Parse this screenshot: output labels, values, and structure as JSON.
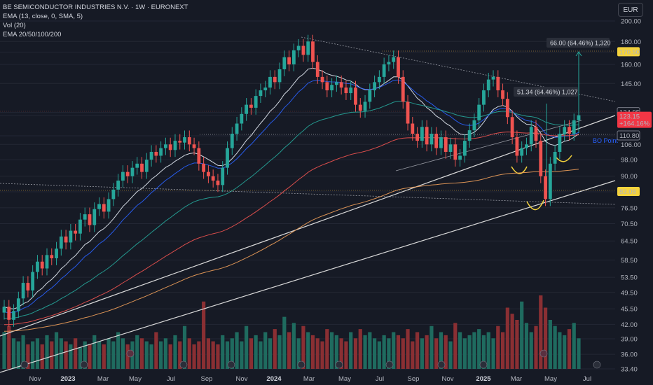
{
  "legend": {
    "title": "BE SEMICONDUCTOR INDUSTRIES N.V. · 1W · EURONEXT",
    "ema": "EMA (13, close, 0, SMA, 5)",
    "vol": "Vol (20)",
    "ema_multi": "EMA 20/50/100/200"
  },
  "currency": "EUR",
  "colors": {
    "up": "#26a69a",
    "down": "#ef5350",
    "bg": "#161a25",
    "ema13": "#e6ecf5",
    "ema20": "#2962ff",
    "ema50": "#26a69a",
    "ema100": "#ef5350",
    "ema200": "#f0a05a"
  },
  "chart_data": {
    "type": "candlestick",
    "y_scale": "log",
    "ylim": [
      33.4,
      200
    ],
    "y_ticks": [
      "200.00",
      "180.00",
      "170.50",
      "160.00",
      "145.00",
      "124.95",
      "123.15",
      "110.80",
      "106.00",
      "98.00",
      "90.00",
      "83.08",
      "76.50",
      "70.50",
      "64.50",
      "58.50",
      "53.50",
      "49.50",
      "45.50",
      "42.00",
      "39.00",
      "36.00",
      "33.40"
    ],
    "x_ticks": [
      {
        "label": "Nov",
        "bold": false
      },
      {
        "label": "2023",
        "bold": true
      },
      {
        "label": "Mar",
        "bold": false
      },
      {
        "label": "May",
        "bold": false
      },
      {
        "label": "Jul",
        "bold": false
      },
      {
        "label": "Sep",
        "bold": false
      },
      {
        "label": "Nov",
        "bold": false
      },
      {
        "label": "2024",
        "bold": true
      },
      {
        "label": "Mar",
        "bold": false
      },
      {
        "label": "May",
        "bold": false
      },
      {
        "label": "Jul",
        "bold": false
      },
      {
        "label": "Sep",
        "bold": false
      },
      {
        "label": "Nov",
        "bold": false
      },
      {
        "label": "2025",
        "bold": true
      },
      {
        "label": "Mar",
        "bold": false
      },
      {
        "label": "May",
        "bold": false
      },
      {
        "label": "Jul",
        "bold": false
      }
    ],
    "price_labels": [
      {
        "value": 170.5,
        "text": "170.50",
        "style": "yellow"
      },
      {
        "value": 124.95,
        "text": "124.95",
        "style": "outline"
      },
      {
        "value": 123.15,
        "text": "123.15",
        "sub": "+164.16%",
        "style": "red"
      },
      {
        "value": 110.8,
        "text": "110.80",
        "style": "outline"
      },
      {
        "value": 83.08,
        "text": "83.08",
        "style": "yellow"
      }
    ],
    "annotations": [
      {
        "text": "66.00 (64.46%) 1,320"
      },
      {
        "text": "51.34 (64.46%) 1,027"
      },
      {
        "text": "BO Point"
      }
    ],
    "closes": [
      46,
      43,
      45,
      48,
      52,
      50,
      55,
      58,
      56,
      60,
      59,
      62,
      66,
      64,
      68,
      67,
      72,
      74,
      70,
      76,
      78,
      75,
      80,
      84,
      88,
      92,
      90,
      94,
      96,
      92,
      98,
      102,
      100,
      104,
      106,
      103,
      108,
      107,
      110,
      106,
      104,
      96,
      92,
      90,
      88,
      86,
      94,
      104,
      112,
      118,
      124,
      130,
      128,
      136,
      140,
      142,
      150,
      146,
      156,
      166,
      160,
      172,
      176,
      168,
      180,
      162,
      150,
      146,
      140,
      144,
      146,
      142,
      138,
      142,
      130,
      126,
      132,
      140,
      146,
      150,
      160,
      162,
      166,
      150,
      132,
      118,
      112,
      108,
      116,
      106,
      112,
      104,
      110,
      102,
      106,
      98,
      100,
      108,
      114,
      120,
      130,
      140,
      148,
      150,
      140,
      134,
      122,
      110,
      100,
      104,
      106,
      116,
      108,
      90,
      80,
      96,
      102,
      112,
      116,
      112,
      120,
      123.15
    ],
    "volume": [
      12,
      14,
      10,
      9,
      11,
      8,
      9,
      10,
      8,
      11,
      9,
      12,
      10,
      9,
      8,
      10,
      7,
      9,
      8,
      11,
      9,
      8,
      10,
      9,
      12,
      10,
      8,
      9,
      11,
      10,
      9,
      8,
      12,
      9,
      10,
      8,
      11,
      9,
      14,
      10,
      8,
      9,
      22,
      10,
      9,
      8,
      11,
      9,
      10,
      12,
      9,
      14,
      10,
      11,
      9,
      12,
      10,
      13,
      11,
      17,
      12,
      15,
      10,
      14,
      12,
      11,
      10,
      9,
      13,
      12,
      11,
      10,
      9,
      12,
      10,
      13,
      11,
      12,
      10,
      9,
      11,
      10,
      12,
      11,
      10,
      13,
      9,
      12,
      10,
      11,
      14,
      10,
      12,
      11,
      9,
      15,
      12,
      10,
      11,
      12,
      13,
      11,
      12,
      10,
      14,
      12,
      20,
      18,
      16,
      22,
      15,
      12,
      14,
      24,
      20,
      16,
      14,
      12,
      11,
      13,
      15,
      10
    ],
    "ema_periods": [
      13,
      20,
      50,
      100,
      200
    ]
  }
}
